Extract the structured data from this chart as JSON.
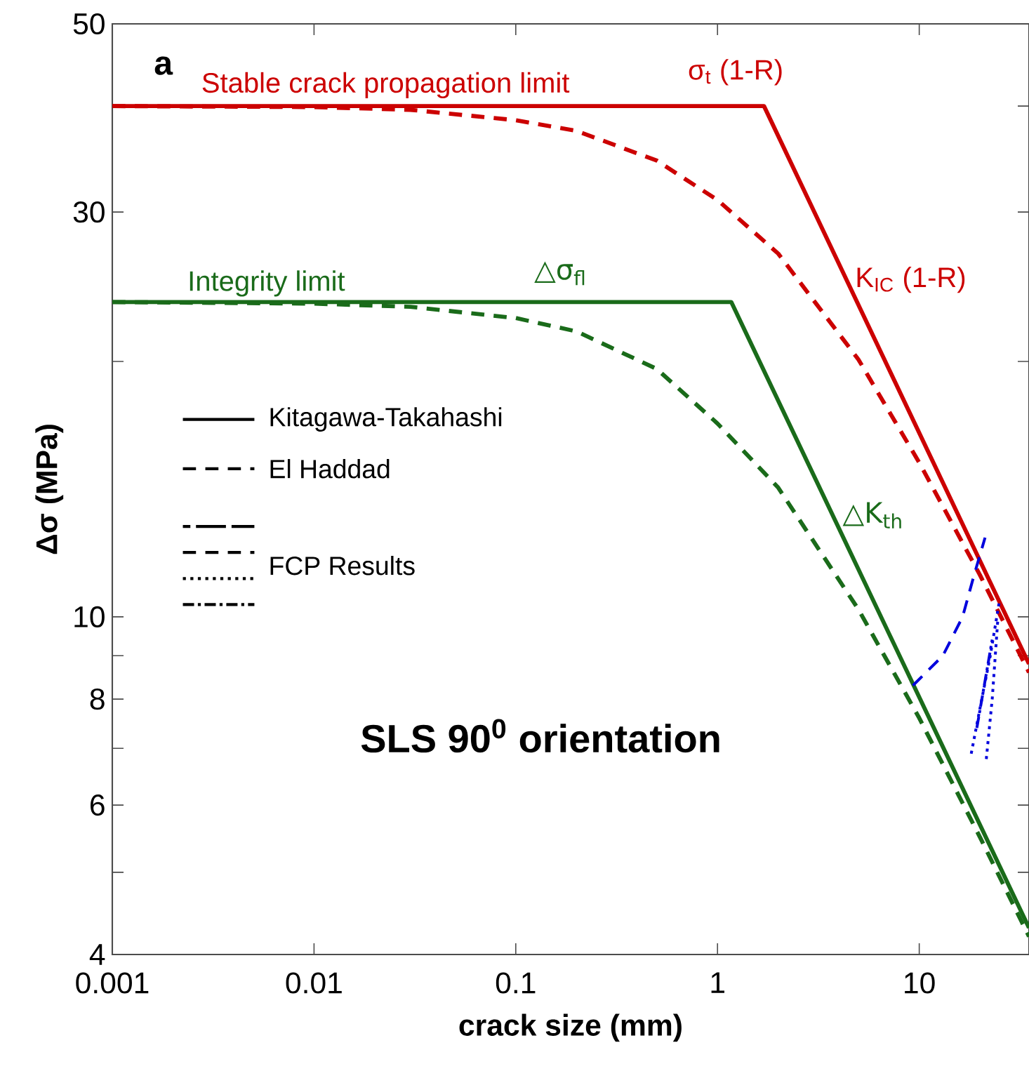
{
  "chart_data": {
    "type": "line",
    "xlabel": "crack size (mm)",
    "ylabel": "Δσ (MPa)",
    "log": "xy",
    "xlim": [
      0.001,
      35
    ],
    "ylim": [
      4,
      50
    ],
    "xticks": [
      0.001,
      0.01,
      0.1,
      1,
      10
    ],
    "yticks": [
      4,
      {
        "value": 5,
        "label": null
      },
      6,
      {
        "value": 7,
        "label": null
      },
      8,
      {
        "value": 9,
        "label": null
      },
      10,
      {
        "value": 20,
        "label": null
      },
      30,
      {
        "value": 40,
        "label": null
      },
      50
    ],
    "grid": false,
    "marker": "none",
    "series": [
      {
        "color": "#cc0000",
        "line_style": "solid",
        "x": [
          0.001,
          1.7,
          35
        ],
        "values": [
          40,
          40,
          8.8
        ]
      },
      {
        "color": "#1a6b1a",
        "line_style": "solid",
        "x": [
          0.001,
          1.17,
          35
        ],
        "values": [
          23.5,
          23.5,
          4.3
        ]
      },
      {
        "color": "#cc0000",
        "line_style": "dashed",
        "x": [
          0.001,
          0.01,
          0.03,
          0.1,
          0.2,
          0.5,
          1,
          2,
          5,
          10,
          20,
          35
        ],
        "values": [
          40,
          39.9,
          39.6,
          38.5,
          37.4,
          34.5,
          31,
          26.8,
          20.1,
          15.2,
          11.2,
          8.6
        ]
      },
      {
        "color": "#1a6b1a",
        "line_style": "dashed",
        "x": [
          0.001,
          0.01,
          0.03,
          0.1,
          0.2,
          0.5,
          1,
          2,
          5,
          10,
          20,
          35
        ],
        "values": [
          23.5,
          23.4,
          23.2,
          22.5,
          21.7,
          19.6,
          16.9,
          14.2,
          10.2,
          7.6,
          5.5,
          4.2
        ]
      },
      {
        "color": "#0000dd",
        "line_style": "dashed",
        "x": [
          9.3,
          13.1,
          16.4,
          18.7,
          21.2
        ],
        "values": [
          8.3,
          9.0,
          10.0,
          11.2,
          12.4
        ]
      },
      {
        "color": "#0000dd",
        "line_style": "dotted",
        "x": [
          18.1,
          20,
          22.5,
          24.9
        ],
        "values": [
          6.9,
          7.8,
          9.0,
          10.4
        ]
      },
      {
        "color": "#0000dd",
        "line_style": "dotted",
        "x": [
          21.5,
          23,
          24.5
        ],
        "values": [
          6.8,
          8.0,
          9.9
        ]
      },
      {
        "color": "#0000dd",
        "line_style": "dashdot",
        "x": [
          19.3,
          21,
          23
        ],
        "values": [
          7.4,
          8.3,
          9.4
        ]
      }
    ],
    "annotations": [
      "**a**",
      "**SLS 90$^{0}$ orientation**",
      "Stable crack propagation limit",
      "σ$_{t}$ (1-R)",
      "K$_{IC}$ (1-R)",
      "Integrity limit",
      "△σ$_{fl}$",
      "△K$_{th}$",
      "Kitagawa-Takahashi",
      "El Haddad",
      "FCP Results"
    ]
  }
}
